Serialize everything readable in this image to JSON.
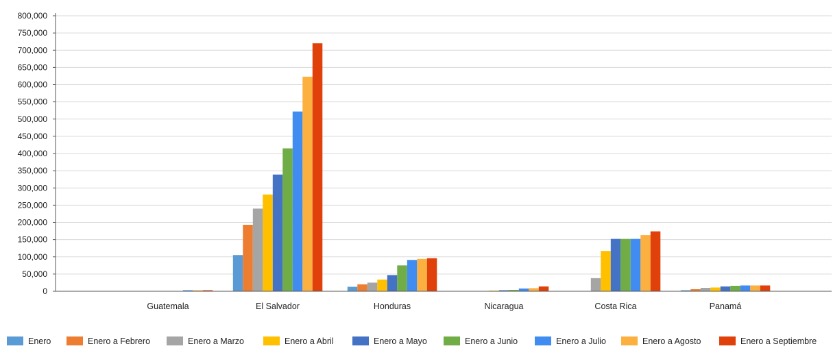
{
  "chart_data": {
    "type": "bar",
    "title": "",
    "xlabel": "",
    "ylabel": "",
    "ylim": [
      0,
      800000
    ],
    "yticks": [
      0,
      50000,
      100000,
      150000,
      200000,
      250000,
      300000,
      350000,
      400000,
      450000,
      500000,
      550000,
      600000,
      650000,
      700000,
      750000,
      800000
    ],
    "ytick_labels": [
      "0",
      "50,000",
      "100,000",
      "150,000",
      "200,000",
      "250,000",
      "300,000",
      "350,000",
      "400,000",
      "450,000",
      "500,000",
      "550,000",
      "600,000",
      "650,000",
      "700,000",
      "750,000",
      "800,000"
    ],
    "grid": true,
    "legend_position": "bottom",
    "categories": [
      "Guatemala",
      "El Salvador",
      "Honduras",
      "Nicaragua",
      "Costa Rica",
      "Panamá"
    ],
    "series": [
      {
        "name": "Enero",
        "color": "#5B9BD5",
        "values": [
          0,
          105000,
          13000,
          0,
          0,
          3000
        ]
      },
      {
        "name": "Enero a Febrero",
        "color": "#ED7D31",
        "values": [
          0,
          193000,
          20000,
          0,
          0,
          6000
        ]
      },
      {
        "name": "Enero a Marzo",
        "color": "#A5A5A5",
        "values": [
          0,
          240000,
          25000,
          0,
          38000,
          10000
        ]
      },
      {
        "name": "Enero a Abril",
        "color": "#FFC000",
        "values": [
          0,
          281000,
          34000,
          2000,
          117000,
          11000
        ]
      },
      {
        "name": "Enero a Mayo",
        "color": "#4472C4",
        "values": [
          0,
          339000,
          47000,
          3000,
          152000,
          14000
        ]
      },
      {
        "name": "Enero a Junio",
        "color": "#70AD47",
        "values": [
          0,
          415000,
          75000,
          4000,
          152000,
          16000
        ]
      },
      {
        "name": "Enero a Julio",
        "color": "#418CF0",
        "values": [
          3000,
          522000,
          91000,
          8000,
          152000,
          17000
        ]
      },
      {
        "name": "Enero a Agosto",
        "color": "#FBB040",
        "values": [
          3000,
          623000,
          94000,
          9000,
          163000,
          17000
        ]
      },
      {
        "name": "Enero a Septiembre",
        "color": "#E0400A",
        "values": [
          3000,
          720000,
          96000,
          14000,
          174000,
          17000
        ]
      }
    ]
  }
}
